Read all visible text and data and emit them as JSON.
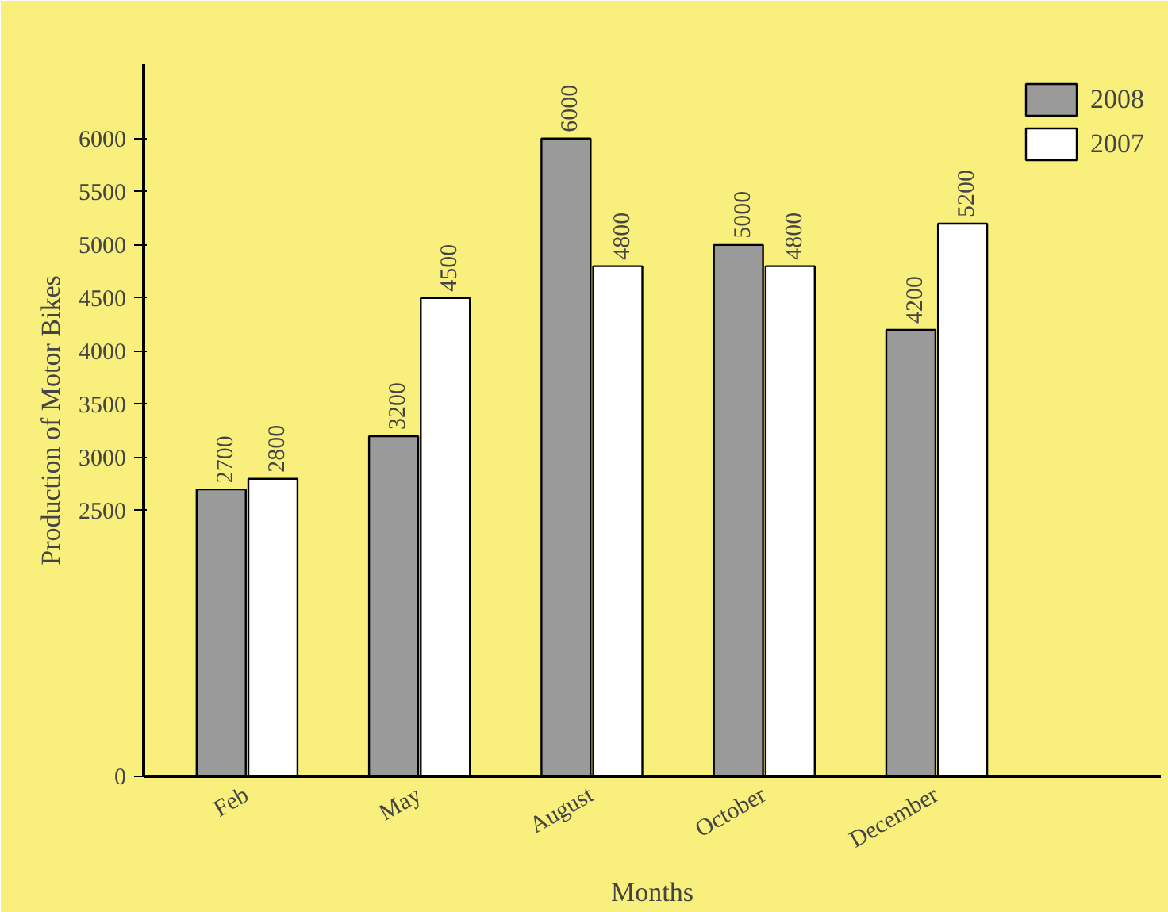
{
  "chart_data": {
    "type": "bar",
    "xlabel": "Months",
    "ylabel": "Production of Motor Bikes",
    "categories": [
      "Feb",
      "May",
      "August",
      "October",
      "December"
    ],
    "series": [
      {
        "name": "2008",
        "color": "#9a9a9a",
        "values": [
          2700,
          3200,
          6000,
          5000,
          4200
        ]
      },
      {
        "name": "2007",
        "color": "#ffffff",
        "values": [
          2800,
          4500,
          4800,
          4800,
          5200
        ]
      }
    ],
    "ylim": [
      0,
      6700
    ],
    "yticks": [
      0,
      2500,
      3000,
      3500,
      4000,
      4500,
      5000,
      5500,
      6000
    ],
    "grid": false,
    "legend": "top right",
    "data_labels": true
  }
}
